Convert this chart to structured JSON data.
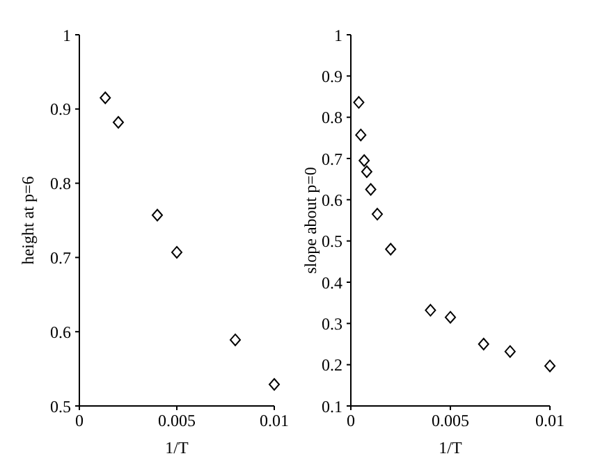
{
  "chart_data": [
    {
      "type": "scatter",
      "xlabel": "1/T",
      "ylabel": "height at p=6",
      "x": [
        0.00133,
        0.002,
        0.004,
        0.005,
        0.008,
        0.01
      ],
      "values": [
        0.915,
        0.882,
        0.757,
        0.707,
        0.589,
        0.529
      ],
      "color": "#000000",
      "marker": "diamond",
      "xlim": [
        0,
        0.01
      ],
      "xticks": [
        0,
        0.005,
        0.01
      ],
      "ylim": [
        0.5,
        1
      ],
      "yticks": [
        0.5,
        0.6,
        0.7,
        0.8,
        0.9,
        1
      ],
      "grid": false,
      "legend": false
    },
    {
      "type": "scatter",
      "xlabel": "1/T",
      "ylabel": "slope about p=0",
      "x": [
        0.0004,
        0.0005,
        0.00067,
        0.0008,
        0.001,
        0.00133,
        0.002,
        0.004,
        0.005,
        0.00667,
        0.008,
        0.01
      ],
      "values": [
        0.836,
        0.757,
        0.695,
        0.668,
        0.625,
        0.565,
        0.48,
        0.332,
        0.315,
        0.25,
        0.232,
        0.197
      ],
      "color": "#000000",
      "marker": "diamond",
      "xlim": [
        0,
        0.01
      ],
      "xticks": [
        0,
        0.005,
        0.01
      ],
      "ylim": [
        0.1,
        1
      ],
      "yticks": [
        0.1,
        0.2,
        0.3,
        0.4,
        0.5,
        0.6,
        0.7,
        0.8,
        0.9,
        1
      ],
      "grid": false,
      "legend": false
    }
  ]
}
